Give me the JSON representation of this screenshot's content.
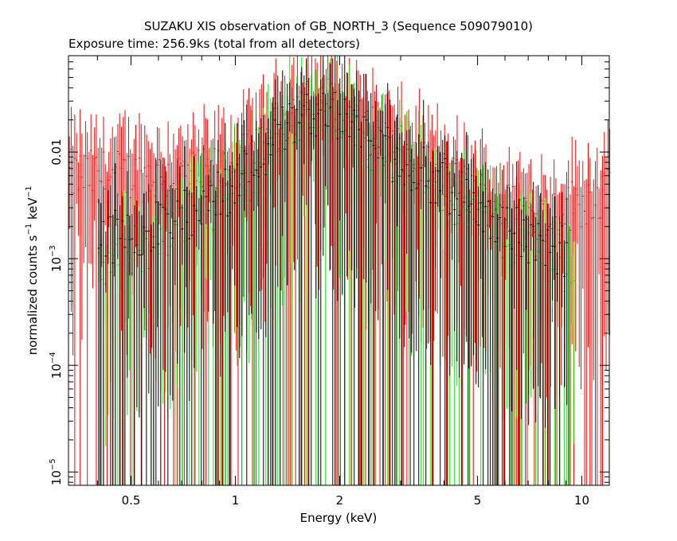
{
  "chart_data": {
    "type": "scatter",
    "title": "SUZAKU XIS observation of GB_NORTH_3 (Sequence 509079010)",
    "subtitle": "Exposure time: 256.9ks (total from all detectors)",
    "xlabel": "Energy (keV)",
    "ylabel_main": "normalized counts s",
    "ylabel_exp1": "−1",
    "ylabel_mid": " keV",
    "ylabel_exp2": "−1",
    "x_scale": "log",
    "y_scale": "log",
    "xlim": [
      0.33,
      12.0
    ],
    "ylim": [
      7.5e-06,
      0.08
    ],
    "grid": false,
    "x_ticks": [
      {
        "value": 0.5,
        "label": "0.5"
      },
      {
        "value": 1,
        "label": "1"
      },
      {
        "value": 2,
        "label": "2"
      },
      {
        "value": 5,
        "label": "5"
      },
      {
        "value": 10,
        "label": "10"
      }
    ],
    "y_ticks": [
      {
        "value": 1e-05,
        "mant": "10",
        "exp": "−5"
      },
      {
        "value": 0.0001,
        "mant": "10",
        "exp": "−4"
      },
      {
        "value": 0.001,
        "mant": "10",
        "exp": "−3"
      },
      {
        "value": 0.01,
        "mant": "0.01",
        "exp": ""
      }
    ],
    "series": [
      {
        "color": "#ff0000",
        "energy_range": [
          0.33,
          12.0
        ],
        "bin_width_frac": 0.012,
        "profile_energy": [
          0.33,
          0.5,
          0.8,
          1.0,
          1.3,
          1.5,
          1.8,
          2.2,
          3.0,
          4.0,
          5.0,
          6.0,
          7.0,
          8.0,
          9.0,
          10.0,
          11.5,
          12.0
        ],
        "profile_counts": [
          0.006,
          0.006,
          0.006,
          0.007,
          0.016,
          0.026,
          0.03,
          0.02,
          0.01,
          0.006,
          0.004,
          0.003,
          0.0028,
          0.0026,
          0.003,
          0.0035,
          0.004,
          0.004
        ]
      },
      {
        "color": "#00ee00",
        "energy_range": [
          0.4,
          9.5
        ],
        "bin_width_frac": 0.016,
        "profile_energy": [
          0.4,
          0.6,
          0.8,
          1.0,
          1.3,
          1.5,
          1.8,
          2.2,
          3.0,
          4.0,
          5.0,
          6.0,
          7.0,
          8.0,
          9.5
        ],
        "profile_counts": [
          0.0008,
          0.0015,
          0.003,
          0.004,
          0.012,
          0.022,
          0.026,
          0.015,
          0.007,
          0.004,
          0.0025,
          0.0017,
          0.0012,
          0.001,
          0.0008
        ]
      },
      {
        "color": "#000000",
        "energy_range": [
          0.4,
          9.0
        ],
        "bin_width_frac": 0.016,
        "profile_energy": [
          0.4,
          0.6,
          0.8,
          1.0,
          1.3,
          1.5,
          1.8,
          2.2,
          3.0,
          4.0,
          5.0,
          6.0,
          7.0,
          9.0
        ],
        "profile_counts": [
          0.0015,
          0.002,
          0.003,
          0.005,
          0.013,
          0.022,
          0.026,
          0.017,
          0.008,
          0.005,
          0.003,
          0.002,
          0.0015,
          0.0012
        ]
      }
    ]
  }
}
